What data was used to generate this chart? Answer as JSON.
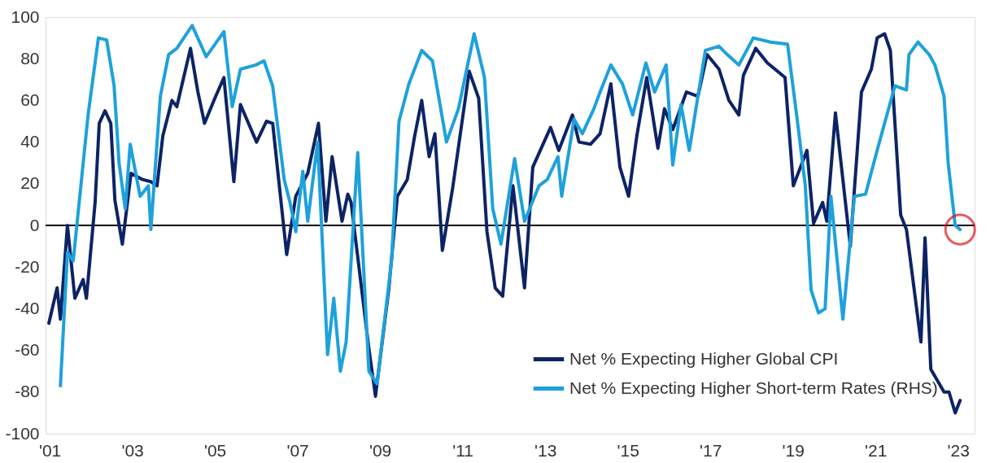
{
  "chart_data": {
    "type": "line",
    "xlim": [
      2000.9,
      2023.4
    ],
    "xticks": [
      {
        "value": 2001,
        "label": "'01"
      },
      {
        "value": 2003,
        "label": "'03"
      },
      {
        "value": 2005,
        "label": "'05"
      },
      {
        "value": 2007,
        "label": "'07"
      },
      {
        "value": 2009,
        "label": "'09"
      },
      {
        "value": 2011,
        "label": "'11"
      },
      {
        "value": 2013,
        "label": "'13"
      },
      {
        "value": 2015,
        "label": "'15"
      },
      {
        "value": 2017,
        "label": "'17"
      },
      {
        "value": 2019,
        "label": "'19"
      },
      {
        "value": 2021,
        "label": "'21"
      },
      {
        "value": 2023,
        "label": "'23"
      }
    ],
    "ylim": [
      -100,
      100
    ],
    "yticks": [
      -100,
      -80,
      -60,
      -40,
      -20,
      0,
      20,
      40,
      60,
      80,
      100
    ],
    "grid": false,
    "legend": "bottom right",
    "ref_lines": [
      {
        "axis": "y",
        "value": 0,
        "color": "#000000"
      }
    ],
    "series": [
      {
        "name": "Net % Expecting Higher Global CPI",
        "color": "#0c2366",
        "x": [
          2000.98,
          2001.18,
          2001.26,
          2001.43,
          2001.61,
          2001.81,
          2001.89,
          2002.1,
          2002.2,
          2002.34,
          2002.48,
          2002.58,
          2002.76,
          2002.97,
          2003.25,
          2003.45,
          2003.6,
          2003.74,
          2003.96,
          2004.08,
          2004.41,
          2004.59,
          2004.75,
          2005.0,
          2005.22,
          2005.46,
          2005.62,
          2006.01,
          2006.25,
          2006.4,
          2006.74,
          2006.96,
          2007.25,
          2007.51,
          2007.69,
          2007.84,
          2008.08,
          2008.22,
          2008.3,
          2008.73,
          2008.89,
          2009.21,
          2009.42,
          2009.66,
          2009.84,
          2010.01,
          2010.19,
          2010.33,
          2010.51,
          2010.76,
          2011.16,
          2011.39,
          2011.59,
          2011.79,
          2011.97,
          2012.22,
          2012.5,
          2012.7,
          2013.13,
          2013.33,
          2013.66,
          2013.82,
          2014.1,
          2014.33,
          2014.59,
          2014.81,
          2015.02,
          2015.22,
          2015.46,
          2015.73,
          2015.89,
          2016.09,
          2016.42,
          2016.7,
          2016.92,
          2017.21,
          2017.45,
          2017.69,
          2017.8,
          2018.1,
          2018.38,
          2018.81,
          2019.01,
          2019.34,
          2019.5,
          2019.72,
          2019.82,
          2020.03,
          2020.39,
          2020.66,
          2020.9,
          2021.04,
          2021.22,
          2021.36,
          2021.61,
          2021.75,
          2022.1,
          2022.2,
          2022.34,
          2022.66,
          2022.78,
          2022.93,
          2023.05
        ],
        "values": [
          -47,
          -30,
          -45,
          0,
          -35,
          -26,
          -35,
          11,
          49,
          55,
          49,
          12,
          -9,
          25,
          22,
          21,
          19,
          43,
          60,
          57,
          85,
          64,
          49,
          61,
          71,
          21,
          58,
          40,
          50,
          49,
          -14,
          14,
          25,
          49,
          2,
          33,
          2,
          15,
          11,
          -59,
          -82,
          -31,
          14,
          22,
          43,
          60,
          33,
          44,
          -12,
          18,
          74,
          61,
          -3,
          -30,
          -34,
          19,
          -30,
          28,
          47,
          36,
          53,
          40,
          39,
          44,
          68,
          28,
          14,
          43,
          71,
          37,
          56,
          46,
          64,
          62,
          82,
          75,
          60,
          53,
          72,
          85,
          78,
          71,
          19,
          36,
          1,
          11,
          2,
          54,
          -10,
          64,
          75,
          90,
          92,
          84,
          5,
          -2,
          -56,
          -6,
          -69,
          -80,
          -80,
          -90,
          -84
        ]
      },
      {
        "name": "Net % Expecting Higher Short-term Rates (RHS)",
        "color": "#1ea1dc",
        "x": [
          2001.26,
          2001.43,
          2001.57,
          2001.75,
          2001.93,
          2002.18,
          2002.38,
          2002.56,
          2002.68,
          2002.83,
          2002.95,
          2003.19,
          2003.39,
          2003.45,
          2003.68,
          2003.88,
          2004.08,
          2004.45,
          2004.79,
          2005.22,
          2005.42,
          2005.62,
          2005.99,
          2006.19,
          2006.4,
          2006.68,
          2006.82,
          2006.96,
          2007.13,
          2007.25,
          2007.49,
          2007.73,
          2007.88,
          2008.04,
          2008.18,
          2008.46,
          2008.73,
          2008.93,
          2009.28,
          2009.46,
          2009.7,
          2010.01,
          2010.27,
          2010.61,
          2010.9,
          2011.28,
          2011.53,
          2011.73,
          2011.93,
          2012.26,
          2012.5,
          2012.85,
          2013.05,
          2013.31,
          2013.4,
          2013.7,
          2013.9,
          2014.18,
          2014.33,
          2014.59,
          2014.87,
          2015.12,
          2015.44,
          2015.65,
          2015.93,
          2016.09,
          2016.29,
          2016.49,
          2016.7,
          2016.88,
          2017.21,
          2017.41,
          2017.69,
          2018.04,
          2018.46,
          2018.87,
          2019.09,
          2019.3,
          2019.44,
          2019.62,
          2019.78,
          2019.92,
          2020.21,
          2020.49,
          2020.76,
          2021.04,
          2021.47,
          2021.75,
          2021.81,
          2022.03,
          2022.3,
          2022.44,
          2022.66,
          2022.76,
          2022.93,
          2023.05
        ],
        "values": [
          -77,
          -13,
          -17,
          18,
          53,
          90,
          89,
          67,
          30,
          8,
          39,
          14,
          19,
          -2,
          62,
          82,
          85,
          96,
          81,
          93,
          57,
          75,
          77,
          79,
          67,
          22,
          11,
          -3,
          26,
          2,
          40,
          -62,
          -35,
          -70,
          -56,
          35,
          -70,
          -76,
          -17,
          50,
          68,
          84,
          79,
          40,
          56,
          92,
          71,
          8,
          -9,
          32,
          2,
          19,
          22,
          33,
          14,
          51,
          44,
          56,
          64,
          77,
          68,
          53,
          78,
          64,
          77,
          29,
          58,
          36,
          62,
          84,
          86,
          82,
          77,
          90,
          88,
          87,
          53,
          19,
          -31,
          -42,
          -40,
          14,
          -45,
          14,
          15,
          36,
          67,
          65,
          82,
          88,
          82,
          77,
          62,
          30,
          0,
          -2
        ]
      }
    ]
  }
}
